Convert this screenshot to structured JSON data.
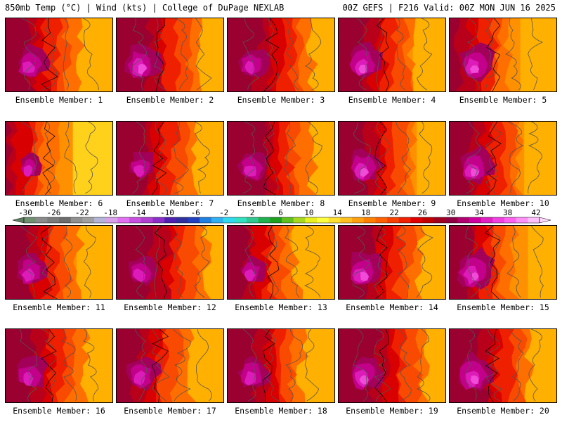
{
  "header": {
    "left_title": "850mb Temp (°C) | Wind (kts) | College of DuPage NEXLAB",
    "right_title": "00Z GEFS | F216 Valid: 00Z MON JUN 16 2025"
  },
  "panel_label_prefix": "Ensemble Member: ",
  "members": [
    {
      "label": "Ensemble Member: 1",
      "hot": 0.62,
      "warmw": 0.55
    },
    {
      "label": "Ensemble Member: 2",
      "hot": 0.72,
      "warmw": 0.65
    },
    {
      "label": "Ensemble Member: 3",
      "hot": 0.58,
      "warmw": 0.65
    },
    {
      "label": "Ensemble Member: 4",
      "hot": 0.68,
      "warmw": 0.6
    },
    {
      "label": "Ensemble Member: 5",
      "hot": 0.7,
      "warmw": 0.45
    },
    {
      "label": "Ensemble Member: 6",
      "hot": 0.45,
      "warmw": 0.35
    },
    {
      "label": "Ensemble Member: 7",
      "hot": 0.55,
      "warmw": 0.6
    },
    {
      "label": "Ensemble Member: 8",
      "hot": 0.62,
      "warmw": 0.65
    },
    {
      "label": "Ensemble Member: 9",
      "hot": 0.66,
      "warmw": 0.6
    },
    {
      "label": "Ensemble Member: 10",
      "hot": 0.7,
      "warmw": 0.55
    },
    {
      "label": "Ensemble Member: 11",
      "hot": 0.6,
      "warmw": 0.55
    },
    {
      "label": "Ensemble Member: 12",
      "hot": 0.55,
      "warmw": 0.7
    },
    {
      "label": "Ensemble Member: 13",
      "hot": 0.5,
      "warmw": 0.5
    },
    {
      "label": "Ensemble Member: 14",
      "hot": 0.72,
      "warmw": 0.65
    },
    {
      "label": "Ensemble Member: 15",
      "hot": 0.75,
      "warmw": 0.5
    },
    {
      "label": "Ensemble Member: 16",
      "hot": 0.62,
      "warmw": 0.6
    },
    {
      "label": "Ensemble Member: 17",
      "hot": 0.64,
      "warmw": 0.55
    },
    {
      "label": "Ensemble Member: 18",
      "hot": 0.6,
      "warmw": 0.6
    },
    {
      "label": "Ensemble Member: 19",
      "hot": 0.7,
      "warmw": 0.7
    },
    {
      "label": "Ensemble Member: 20",
      "hot": 0.72,
      "warmw": 0.65
    }
  ],
  "colorbar": {
    "ticks": [
      "-30",
      "-26",
      "-22",
      "-18",
      "-14",
      "-10",
      "-6",
      "-2",
      "2",
      "6",
      "10",
      "14",
      "18",
      "22",
      "26",
      "30",
      "34",
      "38",
      "42"
    ],
    "colors": [
      "#6f8f70",
      "#8a8a8a",
      "#7a7a7a",
      "#6c6c6c",
      "#909090",
      "#a0a0a0",
      "#b4b4d8",
      "#d8a0e8",
      "#e070f0",
      "#c850e0",
      "#b040d0",
      "#8a30c8",
      "#5020b0",
      "#3030a0",
      "#2040c0",
      "#2080e0",
      "#30b0f0",
      "#30d8f0",
      "#30e0c0",
      "#30c890",
      "#20b050",
      "#20a020",
      "#60c020",
      "#a8d820",
      "#e8f020",
      "#ffff40",
      "#ffe030",
      "#ffc020",
      "#ffa010",
      "#ff8000",
      "#ff6000",
      "#f84000",
      "#f02000",
      "#e00000",
      "#c00000",
      "#a00020",
      "#900040",
      "#b00070",
      "#d000a0",
      "#e020c0",
      "#f040e0",
      "#ff60f0",
      "#ff90f8",
      "#ffc0fc"
    ]
  },
  "palette": {
    "c14": "#ffd11a",
    "c16": "#ffb000",
    "c18": "#ff9000",
    "c20": "#ff6f00",
    "c22": "#f84a00",
    "c24": "#ee2000",
    "c26": "#d80000",
    "c28": "#b8001a",
    "c30": "#9a0030",
    "c32": "#a3005a",
    "c34": "#c2008a",
    "c36": "#dd1bb8",
    "c38": "#f04ad8",
    "contour": "#555555",
    "coast": "#000000"
  }
}
